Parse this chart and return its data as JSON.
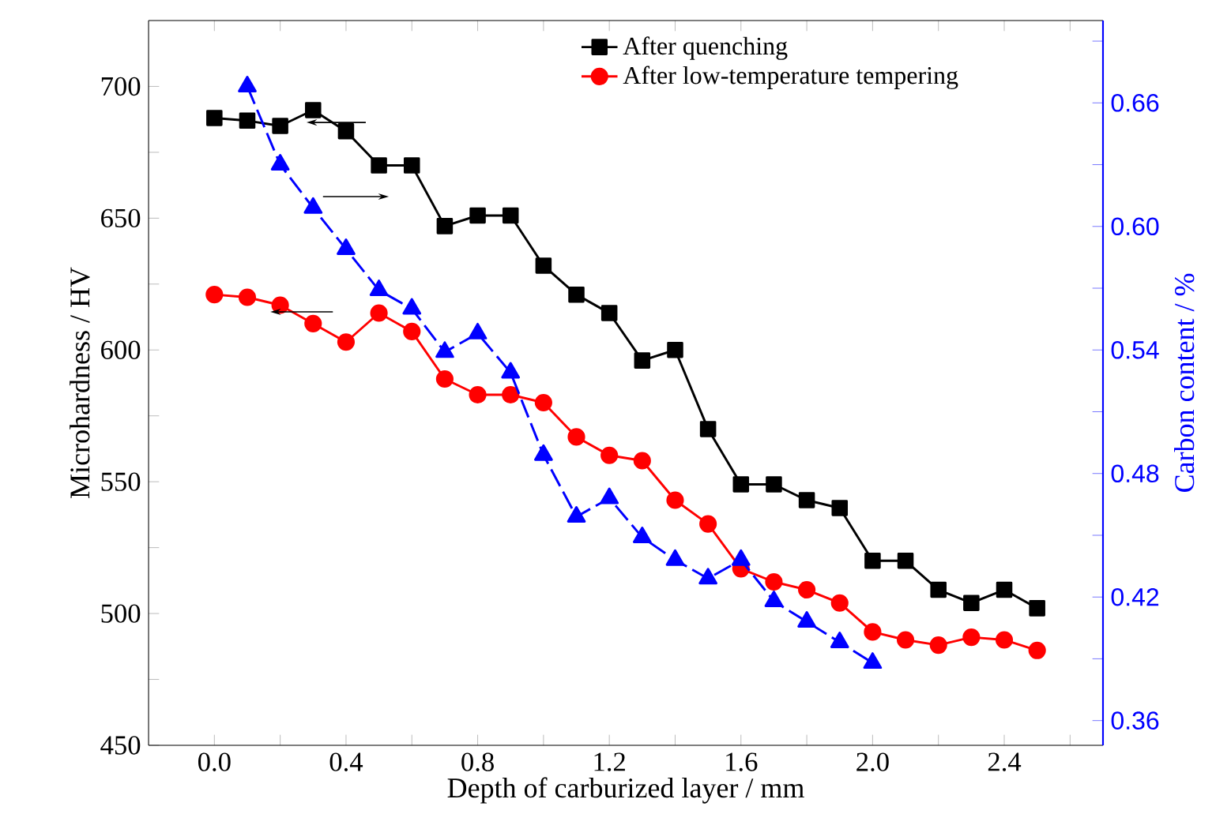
{
  "chart_data": {
    "type": "line",
    "xlabel": "Depth of carburized layer / mm",
    "ylabel": "Microhardness / HV",
    "y2label": "Carbon content / %",
    "xlim": [
      -0.2,
      2.7
    ],
    "ylim": [
      450,
      725
    ],
    "y2lim": [
      0.348,
      0.7
    ],
    "xticks": [
      {
        "value": 0,
        "label": "0.0"
      },
      {
        "value": 0.2,
        "label": null
      },
      {
        "value": 0.4,
        "label": "0.4"
      },
      {
        "value": 0.6,
        "label": null
      },
      {
        "value": 0.8,
        "label": "0.8"
      },
      {
        "value": 1.0,
        "label": null
      },
      {
        "value": 1.2,
        "label": "1.2"
      },
      {
        "value": 1.4,
        "label": null
      },
      {
        "value": 1.6,
        "label": "1.6"
      },
      {
        "value": 1.8,
        "label": null
      },
      {
        "value": 2.0,
        "label": "2.0"
      },
      {
        "value": 2.2,
        "label": null
      },
      {
        "value": 2.4,
        "label": "2.4"
      },
      {
        "value": 2.6,
        "label": null
      }
    ],
    "yticks": [
      450,
      {
        "value": 475,
        "label": null
      },
      500,
      {
        "value": 525,
        "label": null
      },
      550,
      {
        "value": 575,
        "label": null
      },
      600,
      {
        "value": 625,
        "label": null
      },
      650,
      {
        "value": 675,
        "label": null
      },
      700
    ],
    "y2ticks": [
      {
        "value": 0.36,
        "label": "0.36"
      },
      {
        "value": 0.39,
        "label": null
      },
      {
        "value": 0.42,
        "label": "0.42"
      },
      {
        "value": 0.45,
        "label": null
      },
      {
        "value": 0.48,
        "label": "0.48"
      },
      {
        "value": 0.51,
        "label": null
      },
      {
        "value": 0.54,
        "label": "0.54"
      },
      {
        "value": 0.57,
        "label": null
      },
      {
        "value": 0.6,
        "label": "0.60"
      },
      {
        "value": 0.63,
        "label": null
      },
      {
        "value": 0.66,
        "label": "0.66"
      },
      {
        "value": 0.69,
        "label": null
      }
    ],
    "legend": "top right",
    "series": [
      {
        "name": "After quenching",
        "color": "#000000",
        "marker": "square",
        "line_style": "solid",
        "x": [
          0,
          0.1,
          0.2,
          0.3,
          0.4,
          0.5,
          0.6,
          0.7,
          0.8,
          0.9,
          1.0,
          1.1,
          1.2,
          1.3,
          1.4,
          1.5,
          1.6,
          1.7,
          1.8,
          1.9,
          2.0,
          2.1,
          2.2,
          2.3,
          2.4,
          2.5
        ],
        "values": [
          688,
          687,
          685,
          691,
          683,
          670,
          670,
          647,
          651,
          651,
          632,
          621,
          614,
          596,
          600,
          570,
          549,
          549,
          543,
          540,
          520,
          520,
          509,
          504,
          509,
          502
        ]
      },
      {
        "name": "After low-temperature tempering",
        "color": "#ff0000",
        "marker": "circle",
        "line_style": "solid",
        "x": [
          0,
          0.1,
          0.2,
          0.3,
          0.4,
          0.5,
          0.6,
          0.7,
          0.8,
          0.9,
          1.0,
          1.1,
          1.2,
          1.3,
          1.4,
          1.5,
          1.6,
          1.7,
          1.8,
          1.9,
          2.0,
          2.1,
          2.2,
          2.3,
          2.4,
          2.5
        ],
        "values": [
          621,
          620,
          617,
          610,
          603,
          614,
          607,
          589,
          583,
          583,
          580,
          567,
          560,
          558,
          543,
          534,
          517,
          512,
          509,
          504,
          493,
          490,
          488,
          491,
          490,
          486
        ]
      },
      {
        "color": "#0000ff",
        "marker": "triangle",
        "line_style": "dashed",
        "axis": "y2",
        "x": [
          0.1,
          0.2,
          0.3,
          0.4,
          0.5,
          0.6,
          0.7,
          0.8,
          0.9,
          1.0,
          1.1,
          1.2,
          1.3,
          1.4,
          1.5,
          1.6,
          1.7,
          1.8,
          1.9,
          2.0
        ],
        "values": [
          0.668,
          0.63,
          0.609,
          0.589,
          0.569,
          0.56,
          0.539,
          0.548,
          0.529,
          0.489,
          0.459,
          0.468,
          0.449,
          0.438,
          0.429,
          0.438,
          0.418,
          0.408,
          0.398,
          0.388
        ]
      }
    ]
  }
}
